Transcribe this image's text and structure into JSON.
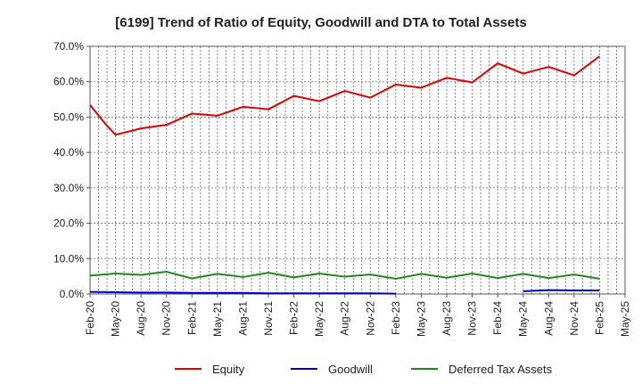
{
  "chart_data": {
    "type": "line",
    "title": "[6199]  Trend of Ratio of Equity, Goodwill and DTA to Total Assets",
    "xlabel": "",
    "ylabel": "",
    "ylim": [
      0,
      70
    ],
    "y_ticks": [
      "0.0%",
      "10.0%",
      "20.0%",
      "30.0%",
      "40.0%",
      "50.0%",
      "60.0%",
      "70.0%"
    ],
    "x_ticks": [
      "Feb-20",
      "May-20",
      "Aug-20",
      "Nov-20",
      "Feb-21",
      "May-21",
      "Aug-21",
      "Nov-21",
      "Feb-22",
      "May-22",
      "Aug-22",
      "Nov-22",
      "Feb-23",
      "May-23",
      "Aug-23",
      "Nov-23",
      "Feb-24",
      "May-24",
      "Aug-24",
      "Nov-24",
      "Feb-25",
      "May-25"
    ],
    "grid": true,
    "legend_position": "bottom",
    "series": [
      {
        "name": "Equity",
        "color": "#e00000",
        "x": [
          0,
          0.67,
          1,
          2,
          3,
          4,
          5,
          6,
          7,
          8,
          9,
          10,
          11,
          12,
          13,
          14,
          15,
          16,
          17,
          18,
          19,
          20
        ],
        "values": [
          53.4,
          47.5,
          45.0,
          46.8,
          47.8,
          51.0,
          50.4,
          52.9,
          52.2,
          56.0,
          54.5,
          57.4,
          55.5,
          59.2,
          58.3,
          61.1,
          59.8,
          65.2,
          62.3,
          64.2,
          61.8,
          67.2
        ]
      },
      {
        "name": "Goodwill",
        "color": "#0000cc",
        "x": [
          0,
          1,
          2,
          3,
          4,
          5,
          6,
          7,
          8,
          9,
          10,
          11,
          12,
          null,
          null,
          null,
          null,
          17,
          18,
          19,
          20
        ],
        "values": [
          0.6,
          0.5,
          0.4,
          0.4,
          0.3,
          0.3,
          0.3,
          0.2,
          0.2,
          0.2,
          0.2,
          0.2,
          0.1,
          null,
          null,
          null,
          null,
          0.8,
          1.1,
          1.0,
          1.0
        ]
      },
      {
        "name": "Deferred Tax Assets",
        "color": "#228822",
        "x": [
          0,
          1,
          2,
          3,
          4,
          5,
          6,
          7,
          8,
          9,
          10,
          11,
          12,
          13,
          14,
          15,
          16,
          17,
          18,
          19,
          20
        ],
        "values": [
          5.2,
          5.8,
          5.4,
          6.3,
          4.4,
          5.7,
          4.8,
          6.0,
          4.7,
          5.8,
          4.9,
          5.5,
          4.3,
          5.7,
          4.6,
          5.8,
          4.5,
          5.7,
          4.5,
          5.5,
          4.3
        ]
      }
    ]
  }
}
